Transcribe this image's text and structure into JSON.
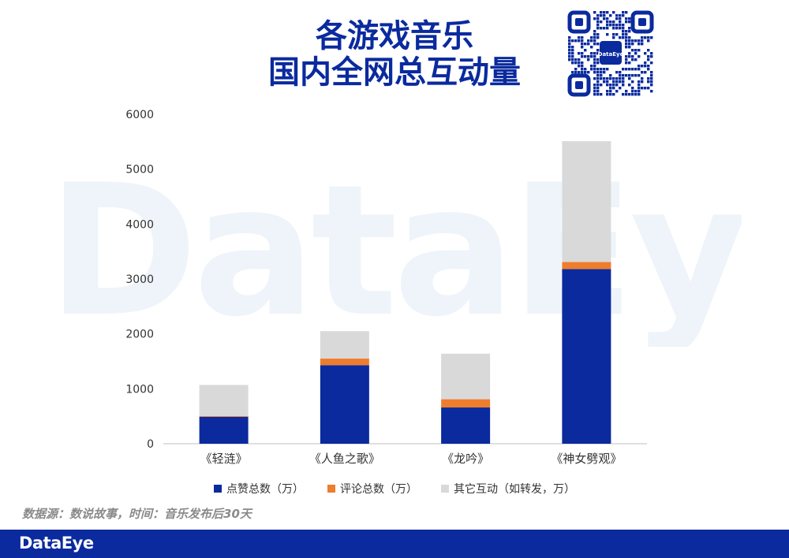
{
  "title_line1": "各游戏音乐",
  "title_line2": "国内全网总互动量",
  "watermark": "DataEye",
  "qr_logo": "DataEye",
  "source": "数据源：数说故事，时间：音乐发布后30天",
  "footer_logo": "DataEye",
  "colors": {
    "brand": "#0a2a9e",
    "likes": "#0a2a9e",
    "comments": "#ee7d2e",
    "others": "#d9d9d9"
  },
  "chart_data": {
    "type": "bar",
    "stacked": true,
    "categories": [
      "《轻涟》",
      "《人鱼之歌》",
      "《龙吟》",
      "《神女劈观》"
    ],
    "series": [
      {
        "name": "点赞总数（万）",
        "values": [
          490,
          1430,
          660,
          3180
        ]
      },
      {
        "name": "评论总数（万）",
        "values": [
          15,
          120,
          150,
          130
        ]
      },
      {
        "name": "其它互动（如转发，万）",
        "values": [
          565,
          500,
          830,
          2200
        ]
      }
    ],
    "ylim": [
      0,
      6000
    ],
    "yticks": [
      0,
      1000,
      2000,
      3000,
      4000,
      5000,
      6000
    ],
    "grid": false,
    "legend_position": "bottom"
  }
}
